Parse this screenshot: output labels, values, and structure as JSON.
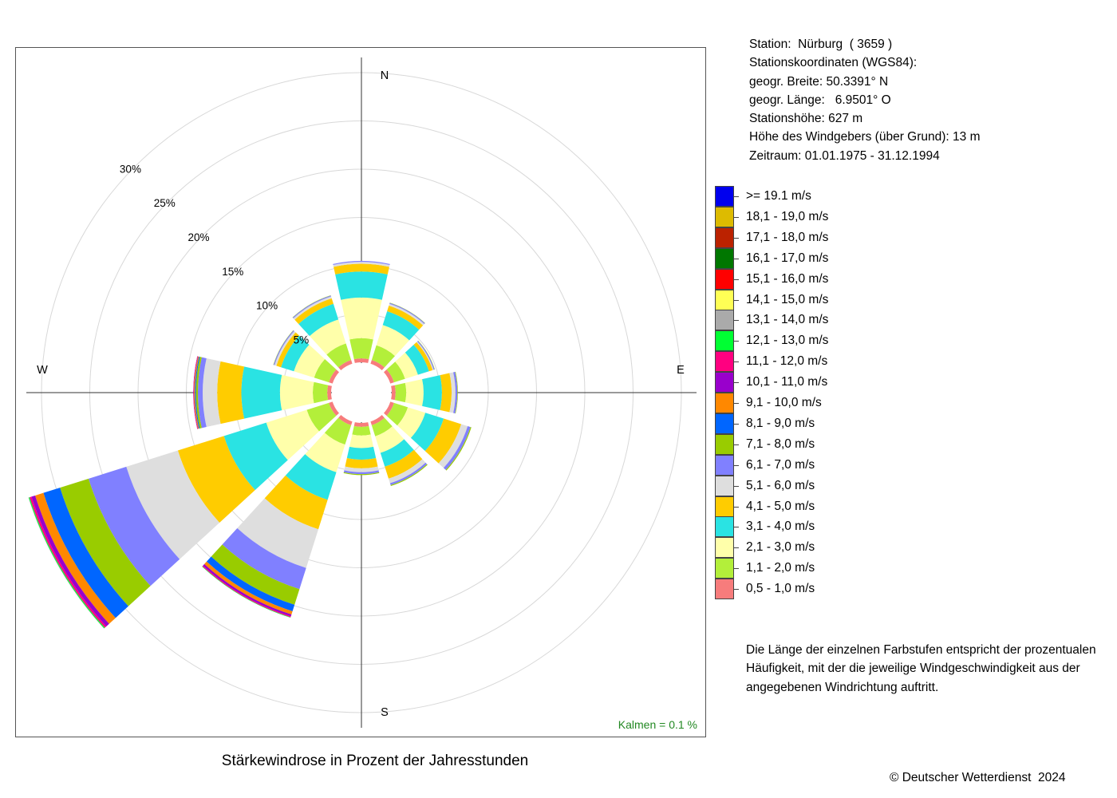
{
  "station": {
    "line_station": "Station:  Nürburg  ( 3659 )",
    "line_coords": "Stationskoordinaten (WGS84):",
    "line_lat": "geogr. Breite: 50.3391° N",
    "line_lon": "geogr. Länge:   6.9501° O",
    "line_height": "Stationshöhe: 627 m",
    "line_sensor": "Höhe des Windgebers (über Grund): 13 m",
    "line_period": "Zeitraum: 01.01.1975 - 31.12.1994"
  },
  "explanation": "Die Länge der einzelnen Farbstufen entspricht der prozentualen Häufigkeit, mit der die jeweilige Windgeschwindigkeit aus der angegebenen Windrichtung auftritt.",
  "caption": "Stärkewindrose in Prozent der Jahresstunden",
  "copyright": "© Deutscher Wetterdienst  2024",
  "chart_data": {
    "type": "windrose",
    "title": "Stärkewindrose in Prozent der Jahresstunden",
    "unit": "%",
    "calm_label": "Kalmen  =  0.1 %",
    "calm_percent": 0.1,
    "radial_ticks": [
      5,
      10,
      15,
      20,
      25,
      30
    ],
    "radial_tick_labels": [
      "5%",
      "10%",
      "15%",
      "20%",
      "25%",
      "30%"
    ],
    "direction_labels": {
      "N": "N",
      "E": "E",
      "S": "S",
      "W": "W"
    },
    "directions_deg": [
      0,
      30,
      60,
      90,
      120,
      150,
      180,
      210,
      240,
      270,
      300,
      330
    ],
    "speed_classes": [
      {
        "label": "0,5 - 1,0 m/s",
        "color": "#f77c7c"
      },
      {
        "label": "1,1 - 2,0 m/s",
        "color": "#b3ef3a"
      },
      {
        "label": "2,1 - 3,0 m/s",
        "color": "#ffffaa"
      },
      {
        "label": "3,1 - 4,0 m/s",
        "color": "#2ae3e3"
      },
      {
        "label": "4,1 - 5,0 m/s",
        "color": "#ffcc00"
      },
      {
        "label": "5,1 - 6,0 m/s",
        "color": "#dedede"
      },
      {
        "label": "6,1 - 7,0 m/s",
        "color": "#8080ff"
      },
      {
        "label": "7,1 - 8,0 m/s",
        "color": "#99cc00"
      },
      {
        "label": "8,1 - 9,0 m/s",
        "color": "#0066ff"
      },
      {
        "label": "9,1 - 10,0 m/s",
        "color": "#ff8800"
      },
      {
        "label": "10,1 - 11,0 m/s",
        "color": "#9900cc"
      },
      {
        "label": "11,1 - 12,0 m/s",
        "color": "#ff0080"
      },
      {
        "label": "12,1 - 13,0 m/s",
        "color": "#00ff33"
      },
      {
        "label": "13,1 - 14,0 m/s",
        "color": "#aaaaaa"
      },
      {
        "label": "14,1 - 15,0 m/s",
        "color": "#ffff55"
      },
      {
        "label": "15,1 - 16,0 m/s",
        "color": "#ff0000"
      },
      {
        "label": "16,1 - 17,0 m/s",
        "color": "#007700"
      },
      {
        "label": "17,1 - 18,0 m/s",
        "color": "#bb2200"
      },
      {
        "label": "18,1 - 19,0 m/s",
        "color": "#ddbb00"
      },
      {
        "label": ">= 19.1 m/s",
        "color": "#0000ee"
      }
    ],
    "series": [
      {
        "direction_deg": 0,
        "values": [
          0.4,
          2.1,
          4.2,
          2.7,
          0.8,
          0.2,
          0.1,
          0,
          0,
          0,
          0,
          0,
          0,
          0,
          0,
          0,
          0,
          0,
          0,
          0
        ]
      },
      {
        "direction_deg": 30,
        "values": [
          0.4,
          1.6,
          2.2,
          1.5,
          0.6,
          0.2,
          0.1,
          0.03,
          0,
          0,
          0,
          0,
          0,
          0,
          0,
          0,
          0,
          0,
          0,
          0
        ]
      },
      {
        "direction_deg": 60,
        "values": [
          0.4,
          1.2,
          1.4,
          1.2,
          0.4,
          0.1,
          0.1,
          0.03,
          0,
          0,
          0,
          0,
          0,
          0,
          0,
          0,
          0,
          0,
          0,
          0
        ]
      },
      {
        "direction_deg": 90,
        "values": [
          0.4,
          1.1,
          1.8,
          1.9,
          1.0,
          0.4,
          0.2,
          0.05,
          0,
          0,
          0,
          0,
          0,
          0,
          0,
          0,
          0,
          0,
          0,
          0
        ]
      },
      {
        "direction_deg": 120,
        "values": [
          0.4,
          1.5,
          1.9,
          2.0,
          1.9,
          0.7,
          0.3,
          0.1,
          0,
          0,
          0,
          0,
          0,
          0,
          0,
          0,
          0,
          0,
          0,
          0
        ]
      },
      {
        "direction_deg": 150,
        "values": [
          0.4,
          1.2,
          1.8,
          1.5,
          1.3,
          0.5,
          0.2,
          0.1,
          0,
          0,
          0,
          0,
          0,
          0,
          0,
          0,
          0,
          0,
          0,
          0
        ]
      },
      {
        "direction_deg": 180,
        "values": [
          0.4,
          0.9,
          1.3,
          1.2,
          0.9,
          0.4,
          0.2,
          0.1,
          0,
          0,
          0,
          0,
          0,
          0,
          0,
          0,
          0,
          0,
          0,
          0
        ]
      },
      {
        "direction_deg": 210,
        "values": [
          0.4,
          2.1,
          3.0,
          3.0,
          3.2,
          4.2,
          2.3,
          1.7,
          0.7,
          0.35,
          0.2,
          0.1,
          0.05,
          0,
          0,
          0,
          0,
          0,
          0,
          0
        ]
      },
      {
        "direction_deg": 240,
        "values": [
          0.4,
          2.4,
          4.4,
          4.6,
          5.0,
          5.6,
          4.1,
          3.1,
          1.8,
          0.9,
          0.4,
          0.2,
          0.1,
          0.03,
          0,
          0,
          0,
          0,
          0,
          0
        ]
      },
      {
        "direction_deg": 270,
        "values": [
          0.4,
          1.5,
          3.4,
          4.0,
          2.5,
          1.5,
          0.5,
          0.2,
          0.1,
          0.1,
          0.05,
          0.03,
          0,
          0,
          0,
          0,
          0,
          0,
          0,
          0
        ]
      },
      {
        "direction_deg": 300,
        "values": [
          0.4,
          1.6,
          2.2,
          1.4,
          0.5,
          0.2,
          0.1,
          0.03,
          0,
          0,
          0,
          0,
          0,
          0,
          0,
          0,
          0,
          0,
          0,
          0
        ]
      },
      {
        "direction_deg": 330,
        "values": [
          0.4,
          1.8,
          2.6,
          1.7,
          0.6,
          0.2,
          0.1,
          0.03,
          0,
          0,
          0,
          0,
          0,
          0,
          0,
          0,
          0,
          0,
          0,
          0
        ]
      }
    ],
    "grid": true,
    "legend_position": "right"
  }
}
